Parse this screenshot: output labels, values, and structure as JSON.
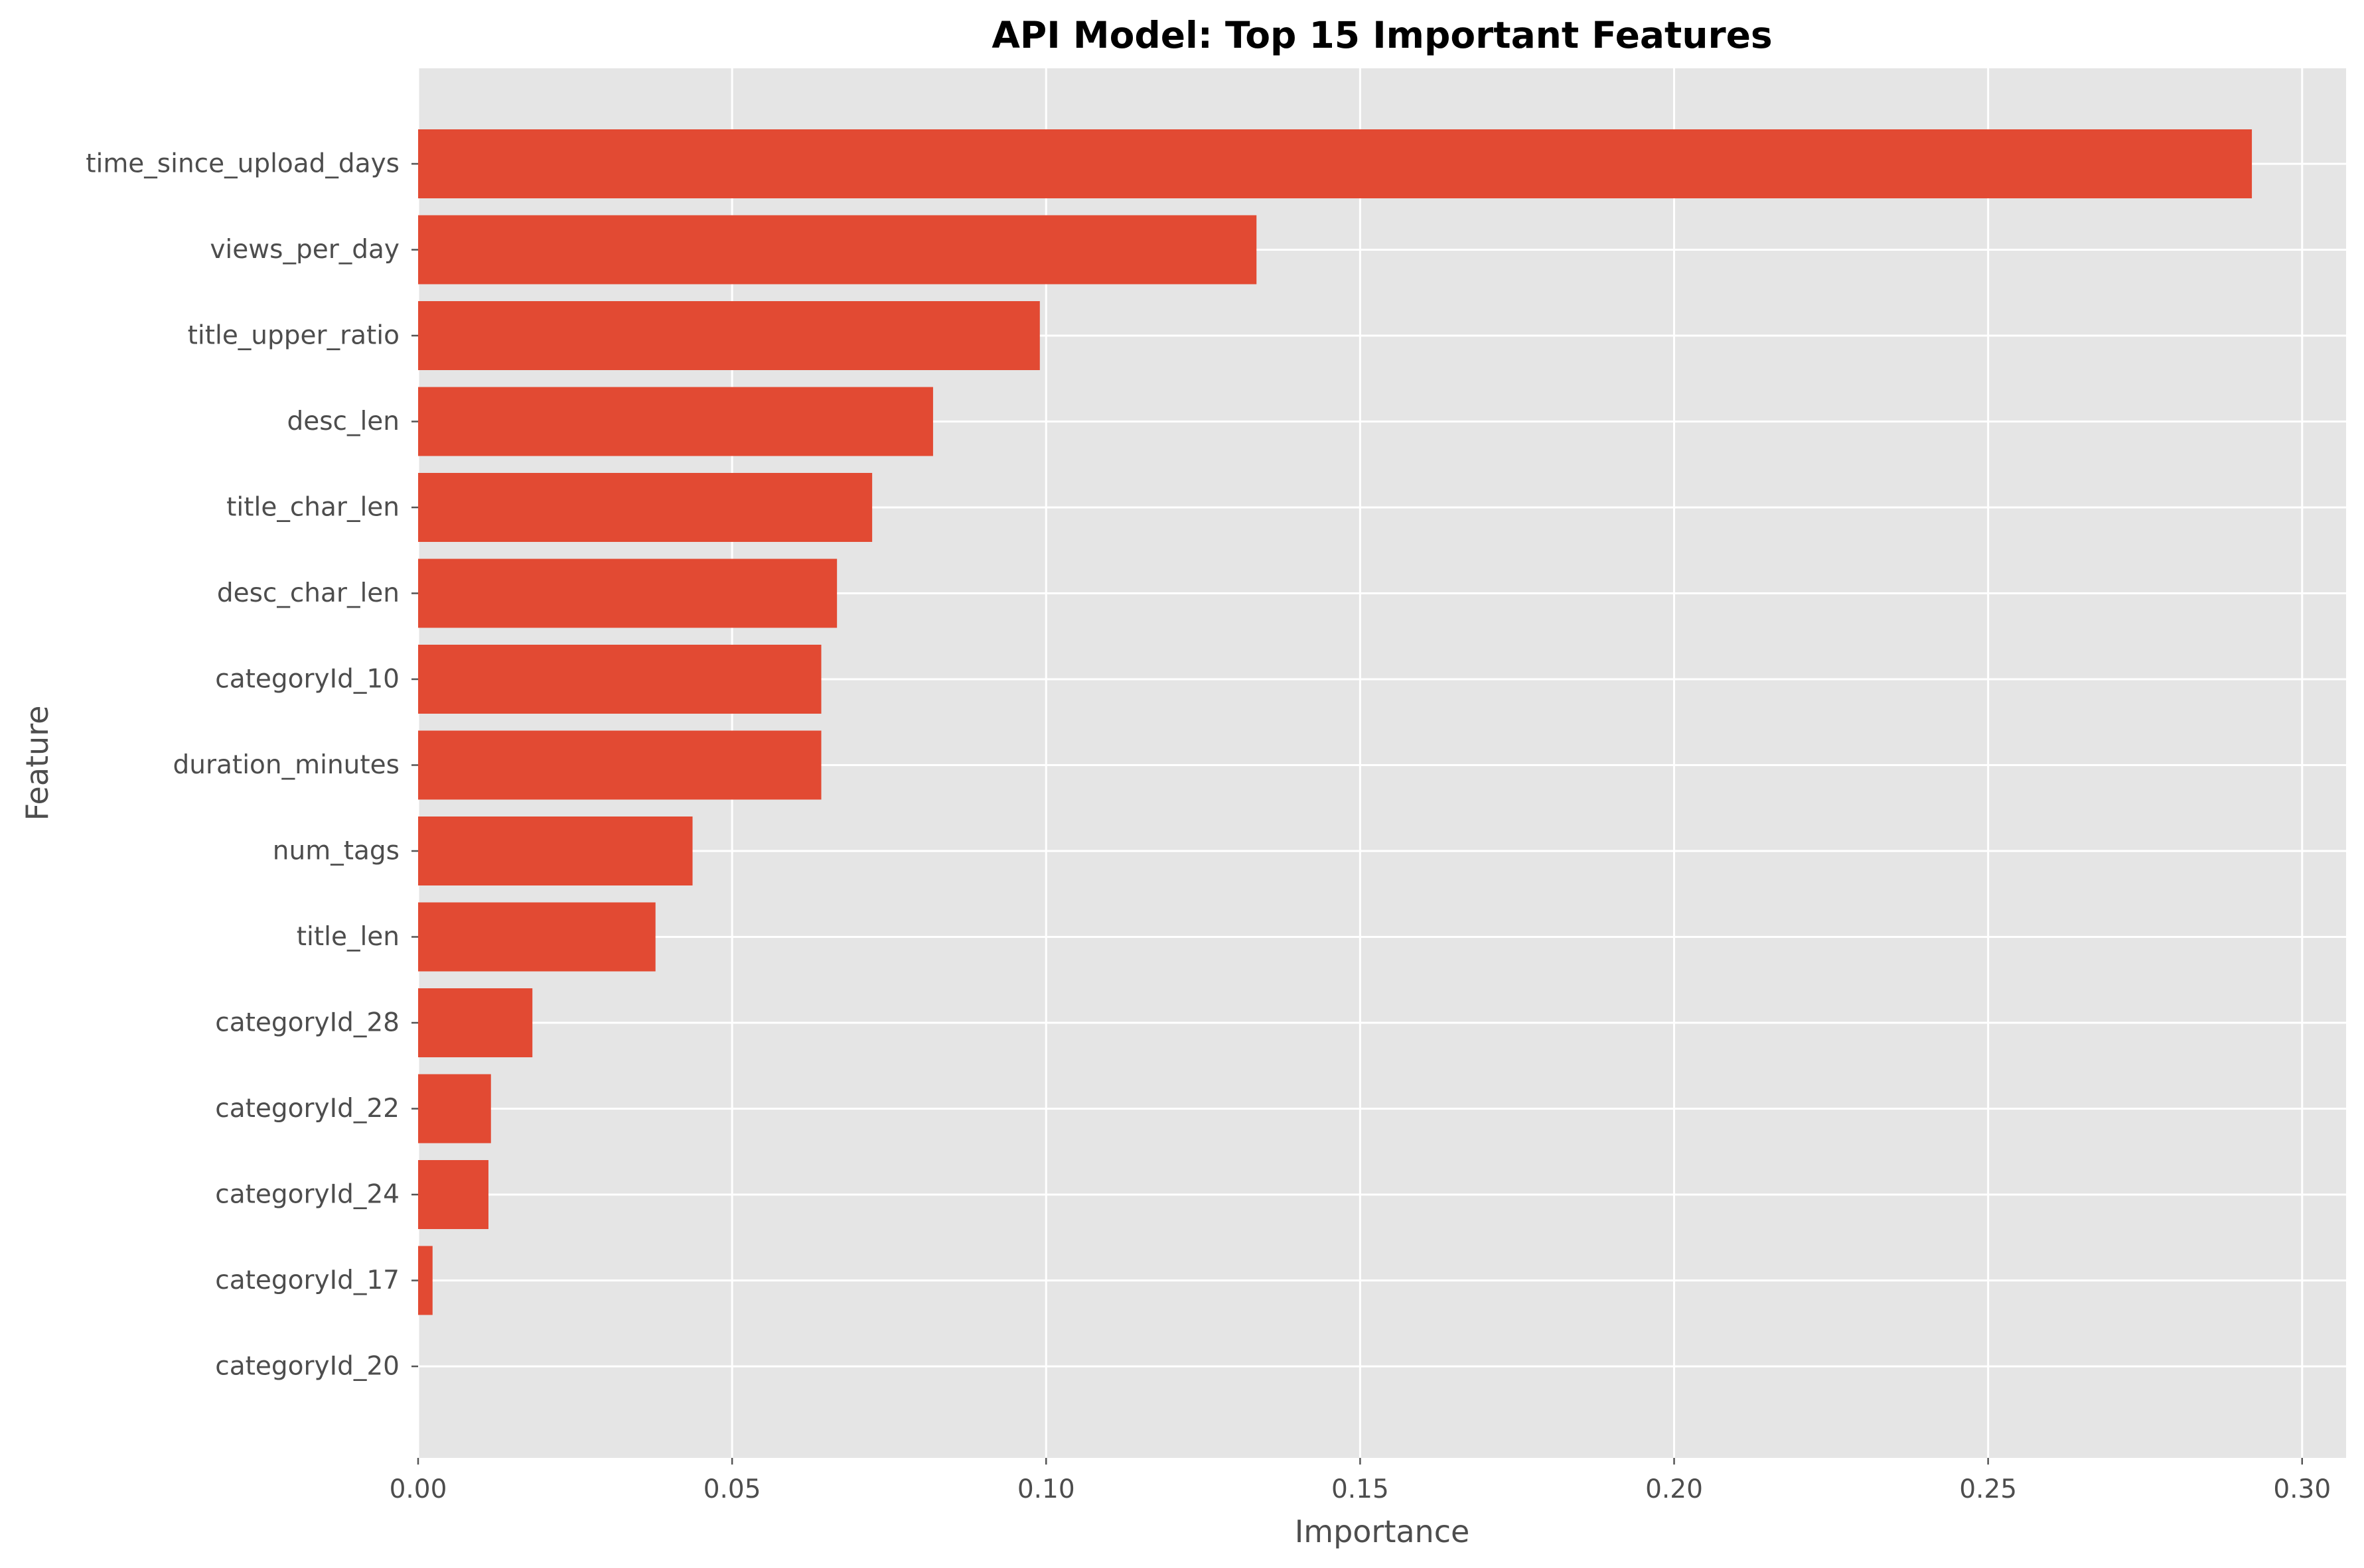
{
  "chart_data": {
    "type": "bar",
    "orientation": "horizontal",
    "title": "API Model: Top 15 Important Features",
    "xlabel": "Importance",
    "ylabel": "Feature",
    "xlim": [
      0,
      0.307
    ],
    "xticks": [
      0.0,
      0.05,
      0.1,
      0.15,
      0.2,
      0.25,
      0.3
    ],
    "xtick_labels": [
      "0.00",
      "0.05",
      "0.10",
      "0.15",
      "0.20",
      "0.25",
      "0.30"
    ],
    "grid": true,
    "categories": [
      "time_since_upload_days",
      "views_per_day",
      "title_upper_ratio",
      "desc_len",
      "title_char_len",
      "desc_char_len",
      "categoryId_10",
      "duration_minutes",
      "num_tags",
      "title_len",
      "categoryId_28",
      "categoryId_22",
      "categoryId_24",
      "categoryId_17",
      "categoryId_20"
    ],
    "values": [
      0.292,
      0.1335,
      0.099,
      0.082,
      0.0723,
      0.0667,
      0.0642,
      0.0642,
      0.0437,
      0.0378,
      0.0182,
      0.0116,
      0.0112,
      0.0023,
      0.0
    ],
    "bar_color": "#E24A33",
    "background_color": "#E5E5E5",
    "grid_color": "#FFFFFF"
  }
}
